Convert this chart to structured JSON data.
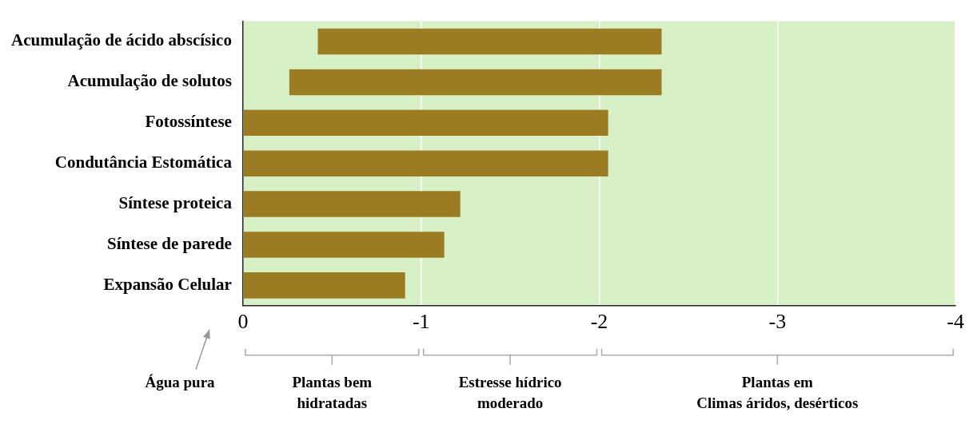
{
  "chart_data": {
    "type": "bar",
    "orientation": "horizontal",
    "categories": [
      "Acumulação de ácido abscísico",
      "Acumulação de solutos",
      "Fotossíntese",
      "Condutância Estomática",
      "Síntese proteica",
      "Síntese de parede",
      "Expansão Celular"
    ],
    "base": [
      -0.42,
      -0.26,
      0,
      0,
      0,
      0,
      0
    ],
    "values": [
      -1.93,
      -2.09,
      -2.05,
      -2.05,
      -1.22,
      -1.13,
      -0.91
    ],
    "color": "#9c7c22",
    "xlim": [
      0,
      -4
    ],
    "xticks": [
      0,
      -1,
      -2,
      -3,
      -4
    ],
    "grid": "x",
    "annotations": [
      "Água pura",
      "Plantas bem\nhidratadas",
      "Estresse hídrico\nmoderado",
      "Plantas em\nClimas áridos, desérticos"
    ]
  }
}
